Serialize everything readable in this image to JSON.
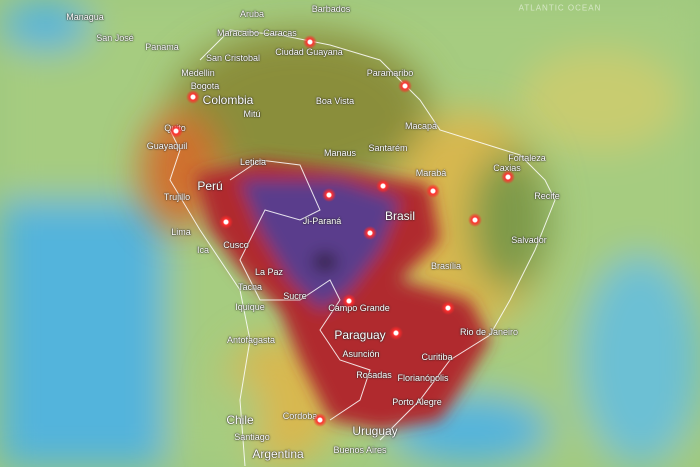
{
  "map": {
    "ocean_label": "ATLANTIC OCEAN",
    "colors": {
      "ocean": "#52b4dc",
      "low": "#a6cc80",
      "moderate": "#d8b850",
      "high": "#d0702e",
      "very_high": "#b02a2e",
      "extreme": "#5a3c8c",
      "peak": "#2a1a30"
    },
    "places": [
      "Managua",
      "San José",
      "Panama",
      "Aruba",
      "Barbados",
      "Maracaibo",
      "Caracas",
      "Ciudad Guayana",
      "San Cristobal",
      "Medellin",
      "Paramaribo",
      "Bogota",
      "Colombia",
      "Boa Vista",
      "Mitú",
      "Macapá",
      "Quito",
      "Guayaquil",
      "Manaus",
      "Santarém",
      "Fortaleza",
      "Leticia",
      "Caxias",
      "Marabá",
      "Perú",
      "Trujillo",
      "Recife",
      "Brasil",
      "Ji-Paraná",
      "Lima",
      "Cusco",
      "Ica",
      "Salvador",
      "Brasília",
      "La Paz",
      "Tacna",
      "Sucre",
      "Iquique",
      "Campo Grande",
      "Paraguay",
      "Rio de Janeiro",
      "Antofagasta",
      "Asunción",
      "Curitiba",
      "Rosadas",
      "Florianópolis",
      "Porto Alegre",
      "Cordoba",
      "Chile",
      "Uruguay",
      "Santiago",
      "Buenos Aires",
      "Argentina"
    ],
    "fire_icon": "flame-icon",
    "fire_count": 15
  }
}
